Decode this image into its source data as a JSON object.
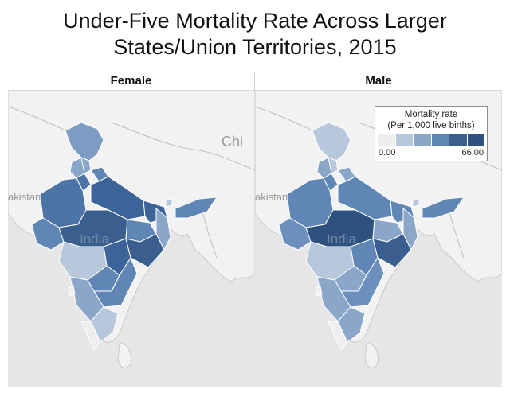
{
  "title": {
    "line1": "Under-Five Mortality Rate Across Larger",
    "line2": "States/Union Territories, 2015"
  },
  "panels": [
    {
      "header": "Female"
    },
    {
      "header": "Male"
    }
  ],
  "map_labels": {
    "china": "Chi",
    "pakistan": "akistan",
    "india": "India"
  },
  "legend": {
    "title_line1": "Mortality rate",
    "title_line2": "(Per 1,000 live births)",
    "min_label": "0.00",
    "max_label": "66.00",
    "min": 0,
    "max": 66,
    "colors": [
      "#eeeeee",
      "#b7c8dd",
      "#8aa7c9",
      "#5f86b4",
      "#3a5f8f",
      "#2e5180"
    ]
  },
  "colors": {
    "land": "#f2f2f2",
    "water": "#e6e6e6",
    "state_border": "#ffffff"
  }
}
